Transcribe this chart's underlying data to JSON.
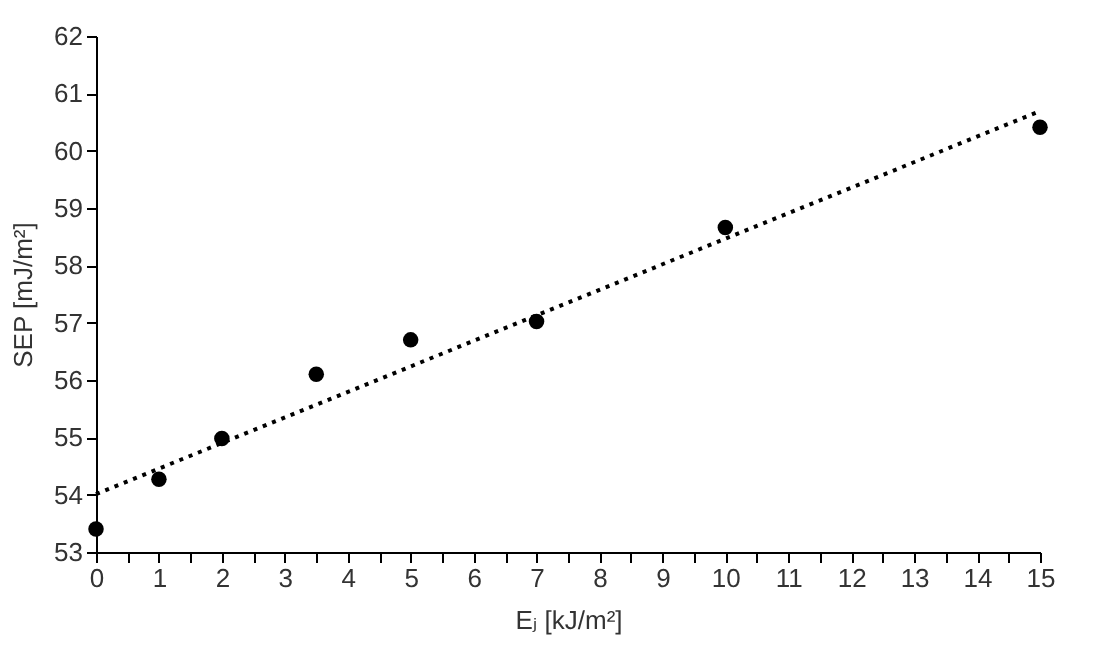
{
  "chart_data": {
    "type": "scatter",
    "xlabel": "Eⱼ [kJ/m²]",
    "ylabel": "SEP [mJ/m²]",
    "x": [
      0,
      1,
      2,
      3.5,
      5,
      7,
      10,
      15
    ],
    "series": [
      {
        "type": "scatter",
        "color": "#000000",
        "marker": "circle",
        "values": [
          53.4,
          54.27,
          54.98,
          56.1,
          56.7,
          57.02,
          58.66,
          60.41
        ]
      },
      {
        "type": "line",
        "color": "#000000",
        "marker": "none",
        "line_style": "dotted",
        "x": [
          0,
          15
        ],
        "values": [
          54.01,
          60.69
        ]
      }
    ],
    "xlim": [
      0,
      15
    ],
    "xticks": [
      0,
      {
        "value": 0.5,
        "label": null
      },
      1,
      {
        "value": 1.5,
        "label": null
      },
      2,
      {
        "value": 2.5,
        "label": null
      },
      3,
      {
        "value": 3.5,
        "label": null
      },
      4,
      {
        "value": 4.5,
        "label": null
      },
      5,
      {
        "value": 5.5,
        "label": null
      },
      6,
      {
        "value": 6.5,
        "label": null
      },
      7,
      {
        "value": 7.5,
        "label": null
      },
      8,
      {
        "value": 8.5,
        "label": null
      },
      9,
      {
        "value": 9.5,
        "label": null
      },
      10,
      {
        "value": 10.5,
        "label": null
      },
      11,
      {
        "value": 11.5,
        "label": null
      },
      12,
      {
        "value": 12.5,
        "label": null
      },
      13,
      {
        "value": 13.5,
        "label": null
      },
      14,
      {
        "value": 14.5,
        "label": null
      },
      15
    ],
    "ylim": [
      53,
      62
    ],
    "yticks": [
      53,
      54,
      55,
      56,
      57,
      58,
      59,
      60,
      61,
      62
    ],
    "grid": false
  }
}
